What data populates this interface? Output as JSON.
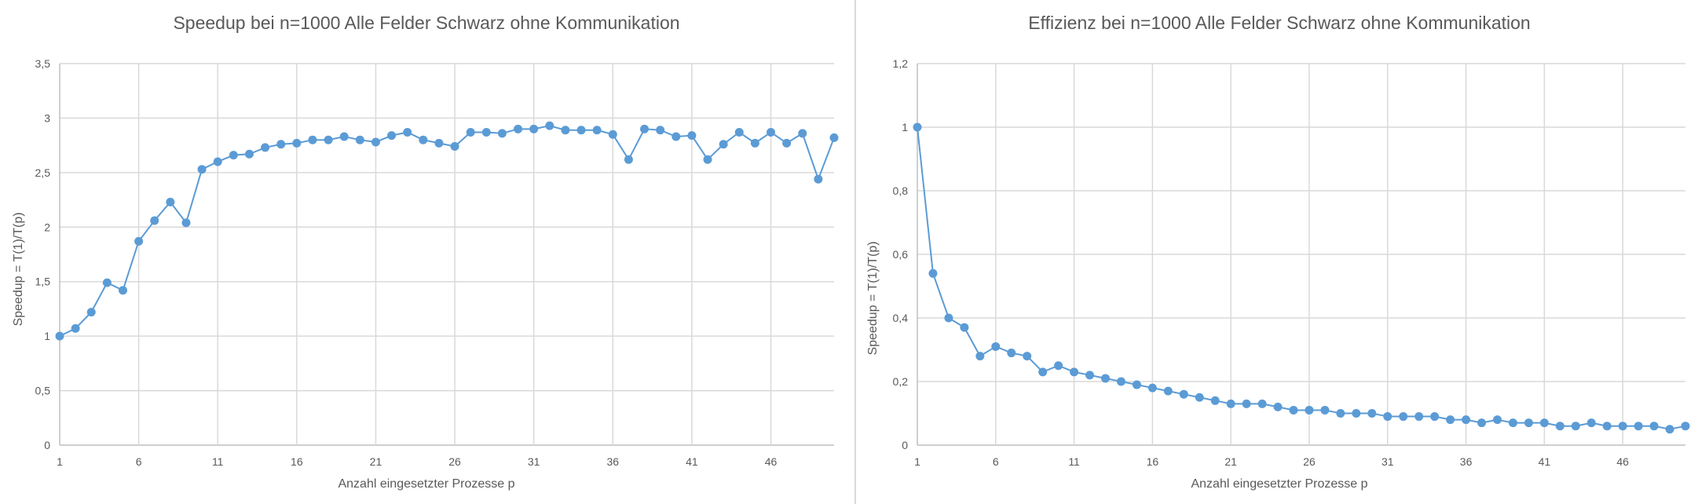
{
  "chart_data": [
    {
      "type": "line",
      "title": "Speedup bei n=1000 Alle Felder Schwarz ohne Kommunikation",
      "xlabel": "Anzahl eingesetzter Prozesse p",
      "ylabel": "Speedup = T(1)/T(p)",
      "x_tick_labels": [
        "1",
        "6",
        "11",
        "16",
        "21",
        "26",
        "31",
        "36",
        "41",
        "46"
      ],
      "y_tick_labels": [
        "0",
        "0,5",
        "1",
        "1,5",
        "2",
        "2,5",
        "3",
        "3,5"
      ],
      "ylim": [
        0,
        3.5
      ],
      "grid": true,
      "color": "#5b9bd5",
      "x": [
        1,
        2,
        3,
        4,
        5,
        6,
        7,
        8,
        9,
        10,
        11,
        12,
        13,
        14,
        15,
        16,
        17,
        18,
        19,
        20,
        21,
        22,
        23,
        24,
        25,
        26,
        27,
        28,
        29,
        30,
        31,
        32,
        33,
        34,
        35,
        36,
        37,
        38,
        39,
        40,
        41,
        42,
        43,
        44,
        45,
        46,
        47,
        48,
        49,
        50
      ],
      "values": [
        1.0,
        1.07,
        1.22,
        1.49,
        1.42,
        1.87,
        2.06,
        2.23,
        2.04,
        2.53,
        2.6,
        2.66,
        2.67,
        2.73,
        2.76,
        2.77,
        2.8,
        2.8,
        2.83,
        2.8,
        2.78,
        2.84,
        2.87,
        2.8,
        2.77,
        2.74,
        2.87,
        2.87,
        2.86,
        2.9,
        2.9,
        2.93,
        2.89,
        2.89,
        2.89,
        2.85,
        2.62,
        2.9,
        2.89,
        2.83,
        2.84,
        2.62,
        2.76,
        2.87,
        2.77,
        2.87,
        2.77,
        2.86,
        2.44,
        2.82
      ]
    },
    {
      "type": "line",
      "title": "Effizienz bei n=1000 Alle Felder Schwarz ohne Kommunikation",
      "xlabel": "Anzahl eingesetzter Prozesse p",
      "ylabel": "Speedup = T(1)/T(p)",
      "x_tick_labels": [
        "1",
        "6",
        "11",
        "16",
        "21",
        "26",
        "31",
        "36",
        "41",
        "46"
      ],
      "y_tick_labels": [
        "0",
        "0,2",
        "0,4",
        "0,6",
        "0,8",
        "1",
        "1,2"
      ],
      "ylim": [
        0,
        1.2
      ],
      "grid": true,
      "color": "#5b9bd5",
      "x": [
        1,
        2,
        3,
        4,
        5,
        6,
        7,
        8,
        9,
        10,
        11,
        12,
        13,
        14,
        15,
        16,
        17,
        18,
        19,
        20,
        21,
        22,
        23,
        24,
        25,
        26,
        27,
        28,
        29,
        30,
        31,
        32,
        33,
        34,
        35,
        36,
        37,
        38,
        39,
        40,
        41,
        42,
        43,
        44,
        45,
        46,
        47,
        48,
        49,
        50
      ],
      "values": [
        1.0,
        0.54,
        0.4,
        0.37,
        0.28,
        0.31,
        0.29,
        0.28,
        0.23,
        0.25,
        0.23,
        0.22,
        0.21,
        0.2,
        0.19,
        0.18,
        0.17,
        0.16,
        0.15,
        0.14,
        0.13,
        0.13,
        0.13,
        0.12,
        0.11,
        0.11,
        0.11,
        0.1,
        0.1,
        0.1,
        0.09,
        0.09,
        0.09,
        0.09,
        0.08,
        0.08,
        0.07,
        0.08,
        0.07,
        0.07,
        0.07,
        0.06,
        0.06,
        0.07,
        0.06,
        0.06,
        0.06,
        0.06,
        0.05,
        0.06
      ]
    }
  ]
}
